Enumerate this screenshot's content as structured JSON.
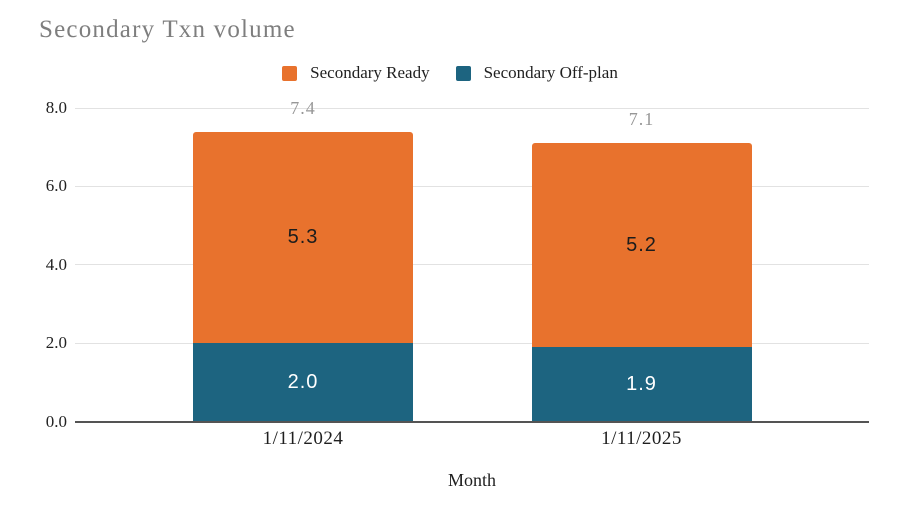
{
  "chart": {
    "background_color": "#ffffff",
    "title_color": "#7e7e7e",
    "gridline_color": "#e2e2e2",
    "axis_line_color": "#545454"
  },
  "chart_data": {
    "type": "bar",
    "stacked": true,
    "title": "Secondary Txn volume",
    "xlabel": "Month",
    "ylabel": "",
    "categories": [
      "1/11/2024",
      "1/11/2025"
    ],
    "series": [
      {
        "name": "Secondary Off-plan",
        "color": "#1d6480",
        "label_color": "#ffffff",
        "values": [
          2.0,
          1.9
        ]
      },
      {
        "name": "Secondary Ready",
        "color": "#e8722d",
        "label_color": "#1c1c1c",
        "values": [
          5.3,
          5.2
        ]
      }
    ],
    "totals": [
      7.4,
      7.1
    ],
    "totals_color": "#979797",
    "legend": [
      "Secondary Ready",
      "Secondary Off-plan"
    ],
    "legend_position": "top",
    "ylim": [
      0,
      8
    ],
    "yticks": [
      "0.0",
      "2.0",
      "4.0",
      "6.0",
      "8.0"
    ],
    "grid": true
  }
}
